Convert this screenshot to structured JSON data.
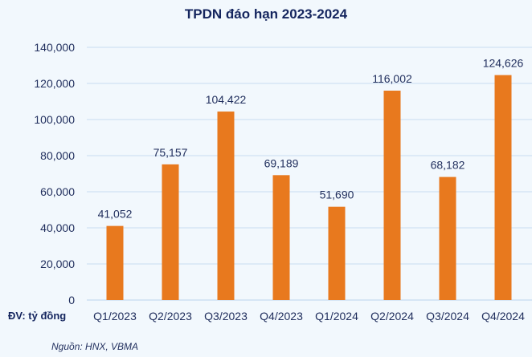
{
  "chart_data": {
    "type": "bar",
    "title": "TPDN đáo hạn 2023-2024",
    "categories": [
      "Q1/2023",
      "Q2/2023",
      "Q3/2023",
      "Q4/2023",
      "Q1/2024",
      "Q2/2024",
      "Q3/2024",
      "Q4/2024"
    ],
    "values": [
      41052,
      75157,
      104422,
      69189,
      51690,
      116002,
      68182,
      124626
    ],
    "value_labels": [
      "41,052",
      "75,157",
      "104,422",
      "69,189",
      "51,690",
      "116,002",
      "68,182",
      "124,626"
    ],
    "yticks": [
      0,
      20000,
      40000,
      60000,
      80000,
      100000,
      120000,
      140000
    ],
    "ytick_labels": [
      "0",
      "20,000",
      "40,000",
      "60,000",
      "80,000",
      "100,000",
      "120,000",
      "140,000"
    ],
    "ylim": [
      0,
      140000
    ],
    "xlabel": "",
    "ylabel": "",
    "grid": true,
    "unit_label": "ĐV: tỷ đồng",
    "source": "Nguồn: HNX, VBMA",
    "bar_color": "#e8791e",
    "grid_color": "#d6e6f5"
  }
}
